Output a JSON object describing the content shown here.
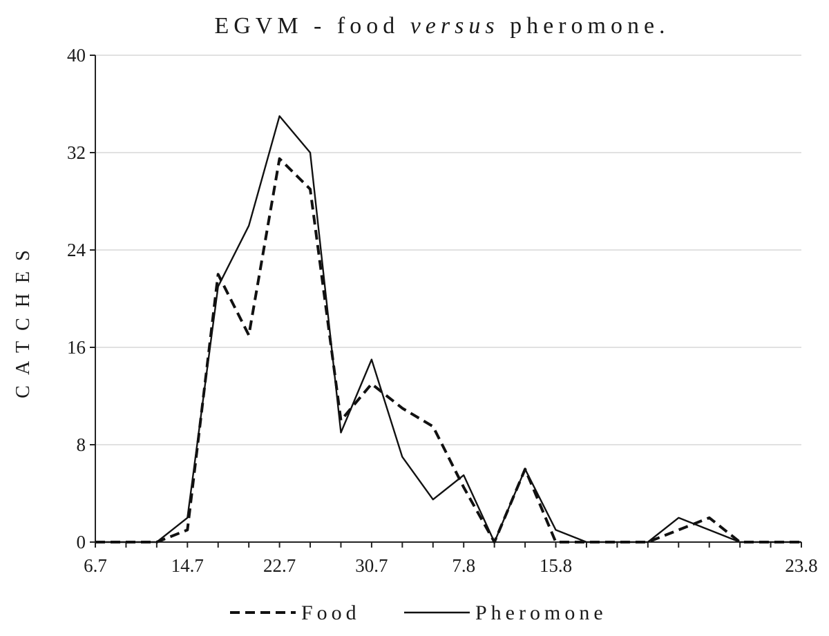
{
  "chart_data": {
    "type": "line",
    "title_parts": [
      "EGVM - food ",
      "versus",
      " pheromone."
    ],
    "ylabel": "CATCHES",
    "xlabel": "",
    "ylim": [
      0,
      40
    ],
    "yticks": [
      0,
      8,
      16,
      24,
      32,
      40
    ],
    "xtick_labels": [
      "6.7",
      "14.7",
      "22.7",
      "30.7",
      "7.8",
      "15.8",
      "23.8"
    ],
    "x_points": 24,
    "xtick_every": 3,
    "grid": true,
    "legend_position": "bottom",
    "series": [
      {
        "name": "Food",
        "style": "dashed",
        "color": "#111111",
        "values": [
          0,
          0,
          0,
          1,
          22,
          17,
          31.5,
          29,
          10,
          13,
          11,
          9.5,
          4.5,
          0,
          6,
          0,
          0,
          0,
          0,
          1,
          2,
          0,
          0,
          0
        ]
      },
      {
        "name": "Pheromone",
        "style": "solid",
        "color": "#111111",
        "values": [
          0,
          0,
          0,
          2,
          21,
          26,
          35,
          32,
          9,
          15,
          7,
          3.5,
          5.5,
          0,
          6,
          1,
          0,
          0,
          0,
          2,
          1,
          0,
          0,
          0
        ]
      }
    ]
  }
}
